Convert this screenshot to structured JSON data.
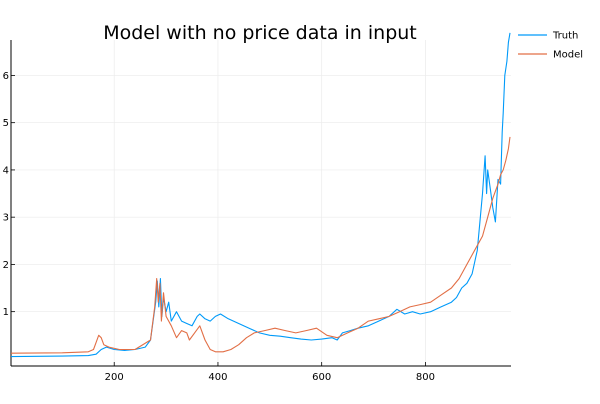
{
  "chart_data": {
    "type": "line",
    "title": "Model with no price data in input",
    "xlabel": "",
    "ylabel": "",
    "xlim": [
      1,
      965
    ],
    "ylim": [
      -0.15,
      6.75
    ],
    "xticks": [
      200,
      400,
      600,
      800
    ],
    "yticks": [
      1,
      2,
      3,
      4,
      5,
      6
    ],
    "grid": true,
    "legend_position": "top-right",
    "series": [
      {
        "name": "Truth",
        "color": "#009af9",
        "points": [
          [
            1,
            0.05
          ],
          [
            100,
            0.06
          ],
          [
            150,
            0.07
          ],
          [
            165,
            0.1
          ],
          [
            175,
            0.2
          ],
          [
            185,
            0.25
          ],
          [
            200,
            0.2
          ],
          [
            220,
            0.18
          ],
          [
            240,
            0.2
          ],
          [
            260,
            0.25
          ],
          [
            270,
            0.4
          ],
          [
            275,
            0.8
          ],
          [
            280,
            1.2
          ],
          [
            283,
            1.65
          ],
          [
            286,
            1.1
          ],
          [
            289,
            1.7
          ],
          [
            292,
            0.9
          ],
          [
            295,
            1.3
          ],
          [
            300,
            1.0
          ],
          [
            305,
            1.2
          ],
          [
            310,
            0.8
          ],
          [
            320,
            1.0
          ],
          [
            330,
            0.8
          ],
          [
            340,
            0.75
          ],
          [
            350,
            0.7
          ],
          [
            360,
            0.9
          ],
          [
            365,
            0.95
          ],
          [
            375,
            0.85
          ],
          [
            385,
            0.8
          ],
          [
            395,
            0.9
          ],
          [
            405,
            0.95
          ],
          [
            420,
            0.85
          ],
          [
            440,
            0.75
          ],
          [
            460,
            0.65
          ],
          [
            480,
            0.55
          ],
          [
            500,
            0.5
          ],
          [
            520,
            0.48
          ],
          [
            540,
            0.45
          ],
          [
            560,
            0.42
          ],
          [
            580,
            0.4
          ],
          [
            600,
            0.42
          ],
          [
            620,
            0.45
          ],
          [
            630,
            0.4
          ],
          [
            640,
            0.55
          ],
          [
            655,
            0.6
          ],
          [
            670,
            0.65
          ],
          [
            690,
            0.7
          ],
          [
            710,
            0.8
          ],
          [
            730,
            0.9
          ],
          [
            745,
            1.05
          ],
          [
            760,
            0.95
          ],
          [
            775,
            1.0
          ],
          [
            790,
            0.95
          ],
          [
            810,
            1.0
          ],
          [
            830,
            1.1
          ],
          [
            850,
            1.2
          ],
          [
            860,
            1.3
          ],
          [
            870,
            1.5
          ],
          [
            880,
            1.6
          ],
          [
            890,
            1.8
          ],
          [
            900,
            2.3
          ],
          [
            905,
            2.9
          ],
          [
            910,
            3.5
          ],
          [
            915,
            4.3
          ],
          [
            918,
            3.5
          ],
          [
            920,
            4.0
          ],
          [
            925,
            3.6
          ],
          [
            930,
            3.2
          ],
          [
            935,
            2.9
          ],
          [
            940,
            3.8
          ],
          [
            945,
            3.7
          ],
          [
            948,
            4.8
          ],
          [
            950,
            5.2
          ],
          [
            953,
            6.0
          ],
          [
            957,
            6.3
          ],
          [
            960,
            6.7
          ],
          [
            963,
            6.9
          ]
        ]
      },
      {
        "name": "Model",
        "color": "#e26f46",
        "points": [
          [
            1,
            0.12
          ],
          [
            100,
            0.13
          ],
          [
            150,
            0.15
          ],
          [
            160,
            0.2
          ],
          [
            165,
            0.35
          ],
          [
            170,
            0.5
          ],
          [
            175,
            0.45
          ],
          [
            180,
            0.3
          ],
          [
            190,
            0.25
          ],
          [
            210,
            0.2
          ],
          [
            240,
            0.2
          ],
          [
            270,
            0.4
          ],
          [
            278,
            1.1
          ],
          [
            282,
            1.7
          ],
          [
            285,
            1.2
          ],
          [
            288,
            1.6
          ],
          [
            291,
            0.8
          ],
          [
            295,
            1.4
          ],
          [
            300,
            0.9
          ],
          [
            310,
            0.7
          ],
          [
            320,
            0.45
          ],
          [
            330,
            0.6
          ],
          [
            340,
            0.55
          ],
          [
            345,
            0.4
          ],
          [
            355,
            0.55
          ],
          [
            365,
            0.7
          ],
          [
            375,
            0.4
          ],
          [
            385,
            0.2
          ],
          [
            395,
            0.15
          ],
          [
            410,
            0.15
          ],
          [
            425,
            0.2
          ],
          [
            440,
            0.3
          ],
          [
            455,
            0.45
          ],
          [
            470,
            0.55
          ],
          [
            490,
            0.6
          ],
          [
            510,
            0.65
          ],
          [
            530,
            0.6
          ],
          [
            550,
            0.55
          ],
          [
            570,
            0.6
          ],
          [
            590,
            0.65
          ],
          [
            610,
            0.5
          ],
          [
            630,
            0.45
          ],
          [
            650,
            0.55
          ],
          [
            670,
            0.65
          ],
          [
            690,
            0.8
          ],
          [
            710,
            0.85
          ],
          [
            730,
            0.9
          ],
          [
            750,
            1.0
          ],
          [
            770,
            1.1
          ],
          [
            790,
            1.15
          ],
          [
            810,
            1.2
          ],
          [
            830,
            1.35
          ],
          [
            850,
            1.5
          ],
          [
            865,
            1.7
          ],
          [
            880,
            2.0
          ],
          [
            895,
            2.3
          ],
          [
            910,
            2.6
          ],
          [
            920,
            3.0
          ],
          [
            930,
            3.4
          ],
          [
            940,
            3.7
          ],
          [
            945,
            3.9
          ],
          [
            950,
            4.0
          ],
          [
            955,
            4.2
          ],
          [
            960,
            4.45
          ],
          [
            963,
            4.7
          ]
        ]
      }
    ]
  }
}
